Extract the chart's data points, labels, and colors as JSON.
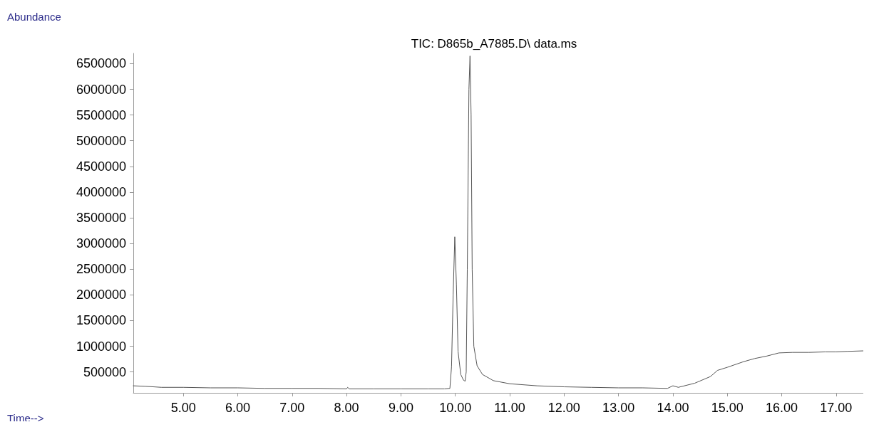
{
  "chart_data": {
    "type": "line",
    "title": "TIC: D865b_A7885.D\\ data.ms",
    "xlabel": "Time-->",
    "ylabel": "Abundance",
    "x": [
      4.08,
      4.3,
      4.6,
      5.0,
      5.5,
      6.0,
      6.5,
      7.0,
      7.5,
      8.0,
      8.02,
      8.05,
      8.5,
      9.0,
      9.5,
      9.8,
      9.9,
      9.93,
      9.96,
      9.99,
      10.02,
      10.05,
      10.1,
      10.15,
      10.18,
      10.2,
      10.22,
      10.25,
      10.27,
      10.29,
      10.31,
      10.34,
      10.4,
      10.5,
      10.7,
      11.0,
      11.5,
      12.0,
      12.5,
      13.0,
      13.44,
      13.9,
      14.0,
      14.1,
      14.4,
      14.69,
      14.82,
      15.0,
      15.3,
      15.5,
      15.73,
      15.95,
      16.2,
      16.5,
      16.8,
      17.0,
      17.2,
      17.5
    ],
    "series": [
      {
        "color": "#555555",
        "values": [
          230000,
          220000,
          200000,
          200000,
          190000,
          190000,
          180000,
          180000,
          180000,
          170000,
          200000,
          170000,
          170000,
          170000,
          170000,
          170000,
          180000,
          600000,
          2000000,
          3130000,
          2200000,
          900000,
          450000,
          340000,
          320000,
          500000,
          2500000,
          6000000,
          6650000,
          5500000,
          2500000,
          1000000,
          620000,
          450000,
          330000,
          270000,
          230000,
          210000,
          200000,
          190000,
          190000,
          180000,
          230000,
          200000,
          280000,
          410000,
          530000,
          590000,
          700000,
          760000,
          810000,
          870000,
          880000,
          880000,
          890000,
          890000,
          900000,
          910000
        ]
      }
    ],
    "xlim": [
      4.08,
      17.5
    ],
    "xticks": [
      {
        "value": 5,
        "label": "5.00"
      },
      {
        "value": 6,
        "label": "6.00"
      },
      {
        "value": 7,
        "label": "7.00"
      },
      {
        "value": 8,
        "label": "8.00"
      },
      {
        "value": 9,
        "label": "9.00"
      },
      {
        "value": 10,
        "label": "10.00"
      },
      {
        "value": 11,
        "label": "11.00"
      },
      {
        "value": 12,
        "label": "12.00"
      },
      {
        "value": 13,
        "label": "13.00"
      },
      {
        "value": 14,
        "label": "14.00"
      },
      {
        "value": 15,
        "label": "15.00"
      },
      {
        "value": 16,
        "label": "16.00"
      },
      {
        "value": 17,
        "label": "17.00"
      }
    ],
    "ylim": [
      93000,
      6700000
    ],
    "yticks": [
      500000,
      1000000,
      1500000,
      2000000,
      2500000,
      3000000,
      3500000,
      4000000,
      4500000,
      5000000,
      5500000,
      6000000,
      6500000
    ],
    "grid": false,
    "marker": "none",
    "line_style": "solid"
  }
}
